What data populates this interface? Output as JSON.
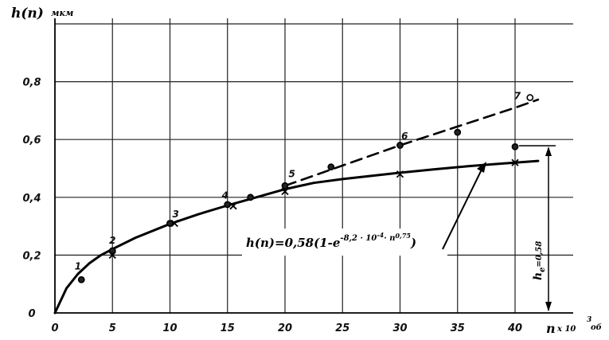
{
  "chart_data": {
    "type": "line",
    "title": "",
    "ylabel": "h(n)",
    "yunit": "мкм",
    "xlabel": "n",
    "xunit_text": "x 10",
    "xunit_exp": "3",
    "xunit_suffix": "об",
    "xlim": [
      0,
      43
    ],
    "ylim": [
      0,
      1.0
    ],
    "xticks": [
      {
        "value": 0,
        "label": "0"
      },
      {
        "value": 5,
        "label": "5"
      },
      {
        "value": 10,
        "label": "10"
      },
      {
        "value": 15,
        "label": "15"
      },
      {
        "value": 20,
        "label": "20"
      },
      {
        "value": 25,
        "label": "25"
      },
      {
        "value": 30,
        "label": "30"
      },
      {
        "value": 35,
        "label": "35"
      },
      {
        "value": 40,
        "label": "40"
      }
    ],
    "yticks": [
      {
        "value": 0,
        "label": "0"
      },
      {
        "value": 0.2,
        "label": "0,2"
      },
      {
        "value": 0.4,
        "label": "0,4"
      },
      {
        "value": 0.6,
        "label": "0,6"
      },
      {
        "value": 0.8,
        "label": "0,8"
      }
    ],
    "grid": true,
    "series": [
      {
        "style": "solid",
        "marker": "curve",
        "x": [
          0,
          1,
          2,
          3,
          4,
          5,
          7,
          10,
          12.5,
          15,
          17.5,
          20,
          22.5,
          25,
          27.5,
          30,
          33,
          36,
          38,
          40,
          42
        ],
        "y": [
          0,
          0.085,
          0.135,
          0.172,
          0.2,
          0.221,
          0.26,
          0.308,
          0.342,
          0.372,
          0.4,
          0.428,
          0.45,
          0.463,
          0.474,
          0.485,
          0.497,
          0.508,
          0.514,
          0.52,
          0.526
        ]
      },
      {
        "style": "dashed",
        "marker": "curve",
        "x": [
          20,
          25,
          30,
          35,
          40,
          42
        ],
        "y": [
          0.44,
          0.51,
          0.58,
          0.645,
          0.71,
          0.738
        ]
      },
      {
        "style": "none",
        "marker": "circle",
        "x": [
          2.3,
          5,
          10,
          15,
          17,
          20,
          24,
          30,
          35,
          40,
          41.3
        ],
        "y": [
          0.115,
          0.215,
          0.31,
          0.375,
          0.4,
          0.44,
          0.505,
          0.58,
          0.625,
          0.575,
          0.745
        ]
      },
      {
        "style": "none",
        "marker": "cross",
        "x": [
          5,
          10.4,
          15.5,
          20,
          30,
          40
        ],
        "y": [
          0.2,
          0.31,
          0.37,
          0.42,
          0.48,
          0.52
        ]
      }
    ],
    "point_labels": [
      {
        "text": "1",
        "x": 2,
        "y": 0.15
      },
      {
        "text": "2",
        "x": 5,
        "y": 0.24
      },
      {
        "text": "3",
        "x": 10.5,
        "y": 0.33
      },
      {
        "text": "4",
        "x": 14.8,
        "y": 0.395
      },
      {
        "text": "5",
        "x": 20.6,
        "y": 0.47
      },
      {
        "text": "6",
        "x": 30.4,
        "y": 0.6
      },
      {
        "text": "7",
        "x": 40.2,
        "y": 0.74
      }
    ],
    "annotation": {
      "formula_prefix": "h(n)=0,58(1-e",
      "formula_exp": "-8,2 · 10",
      "formula_exp2": "-4",
      "formula_mid": "· n",
      "formula_exp3": "0,75",
      "formula_suffix": ")",
      "asymptote_label": "h",
      "asymptote_sub": "e",
      "asymptote_value": "=0,58"
    }
  }
}
